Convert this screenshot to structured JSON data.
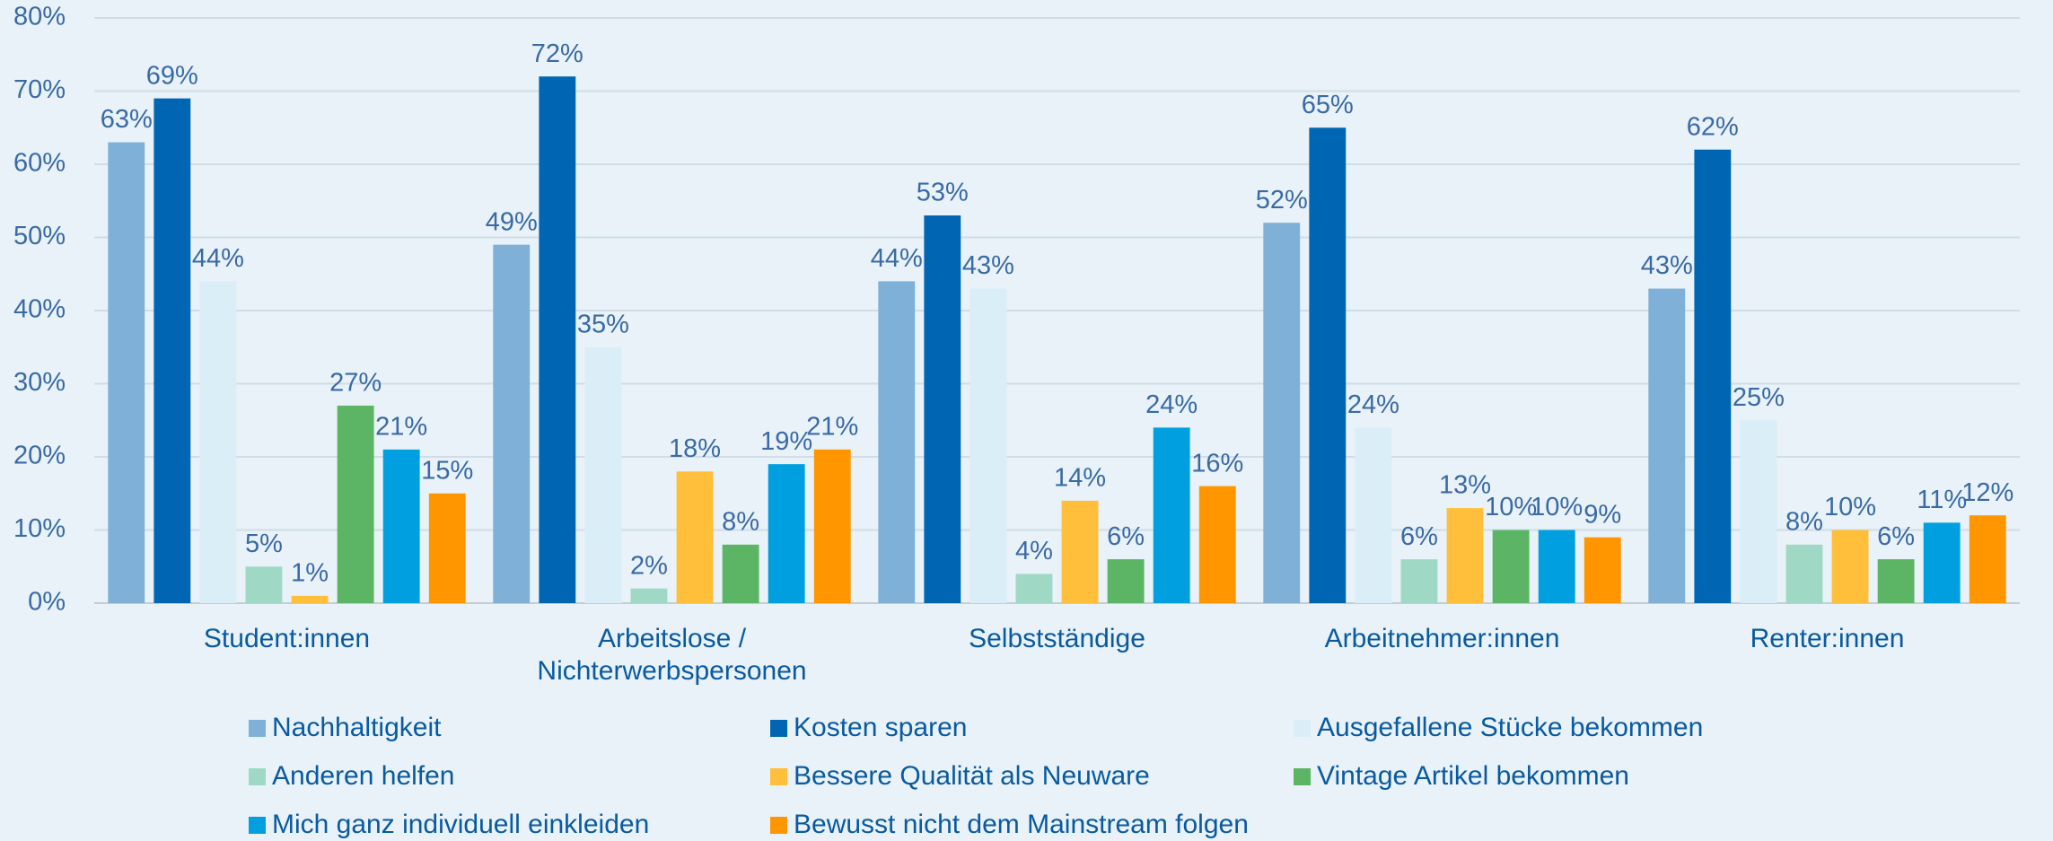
{
  "chart_data": {
    "type": "bar",
    "categories": [
      "Student:innen",
      "Arbeitslose / Nichterwerbspersonen",
      "Selbstständige",
      "Arbeitnehmer:innen",
      "Renter:innen"
    ],
    "series": [
      {
        "name": "Nachhaltigkeit",
        "color": "#7fb0d8",
        "values": [
          63,
          49,
          44,
          52,
          43
        ],
        "value_labels": [
          "63%",
          "49%",
          "44%",
          "52%",
          "43%"
        ]
      },
      {
        "name": "Kosten sparen",
        "color": "#0066b3",
        "values": [
          69,
          72,
          53,
          65,
          62
        ],
        "value_labels": [
          "69%",
          "72%",
          "53%",
          "65%",
          "62%"
        ]
      },
      {
        "name": "Ausgefallene Stücke bekommen",
        "color": "#daeef8",
        "values": [
          44,
          35,
          43,
          24,
          25
        ],
        "value_labels": [
          "44%",
          "35%",
          "43%",
          "24%",
          "25%"
        ]
      },
      {
        "name": "Anderen helfen",
        "color": "#9fd9c6",
        "values": [
          5,
          2,
          4,
          6,
          8
        ],
        "value_labels": [
          "5%",
          "2%",
          "4%",
          "6%",
          "8%"
        ]
      },
      {
        "name": "Bessere Qualität als Neuware",
        "color": "#ffbf3a",
        "values": [
          1,
          18,
          14,
          13,
          10
        ],
        "value_labels": [
          "1%",
          "18%",
          "14%",
          "13%",
          "10%"
        ]
      },
      {
        "name": "Vintage Artikel bekommen",
        "color": "#5bb565",
        "values": [
          27,
          8,
          6,
          10,
          6
        ],
        "value_labels": [
          "27%",
          "8%",
          "6%",
          "10%",
          "6%"
        ]
      },
      {
        "name": "Mich ganz individuell einkleiden",
        "color": "#00a0e0",
        "values": [
          21,
          19,
          24,
          10,
          11
        ],
        "value_labels": [
          "21%",
          "19%",
          "24%",
          "10%",
          "11%"
        ]
      },
      {
        "name": "Bewusst nicht dem Mainstream folgen",
        "color": "#ff9600",
        "values": [
          15,
          21,
          16,
          9,
          12
        ],
        "value_labels": [
          "15%",
          "21%",
          "16%",
          "9%",
          "12%"
        ]
      }
    ],
    "ylim": [
      0,
      80
    ],
    "yticks": [
      {
        "value": 0,
        "label": "0%"
      },
      {
        "value": 10,
        "label": "10%"
      },
      {
        "value": 20,
        "label": "20%"
      },
      {
        "value": 30,
        "label": "30%"
      },
      {
        "value": 40,
        "label": "40%"
      },
      {
        "value": 50,
        "label": "50%"
      },
      {
        "value": 60,
        "label": "60%"
      },
      {
        "value": 70,
        "label": "70%"
      },
      {
        "value": 80,
        "label": "80%"
      }
    ],
    "grid": true,
    "legend": "bottom"
  }
}
